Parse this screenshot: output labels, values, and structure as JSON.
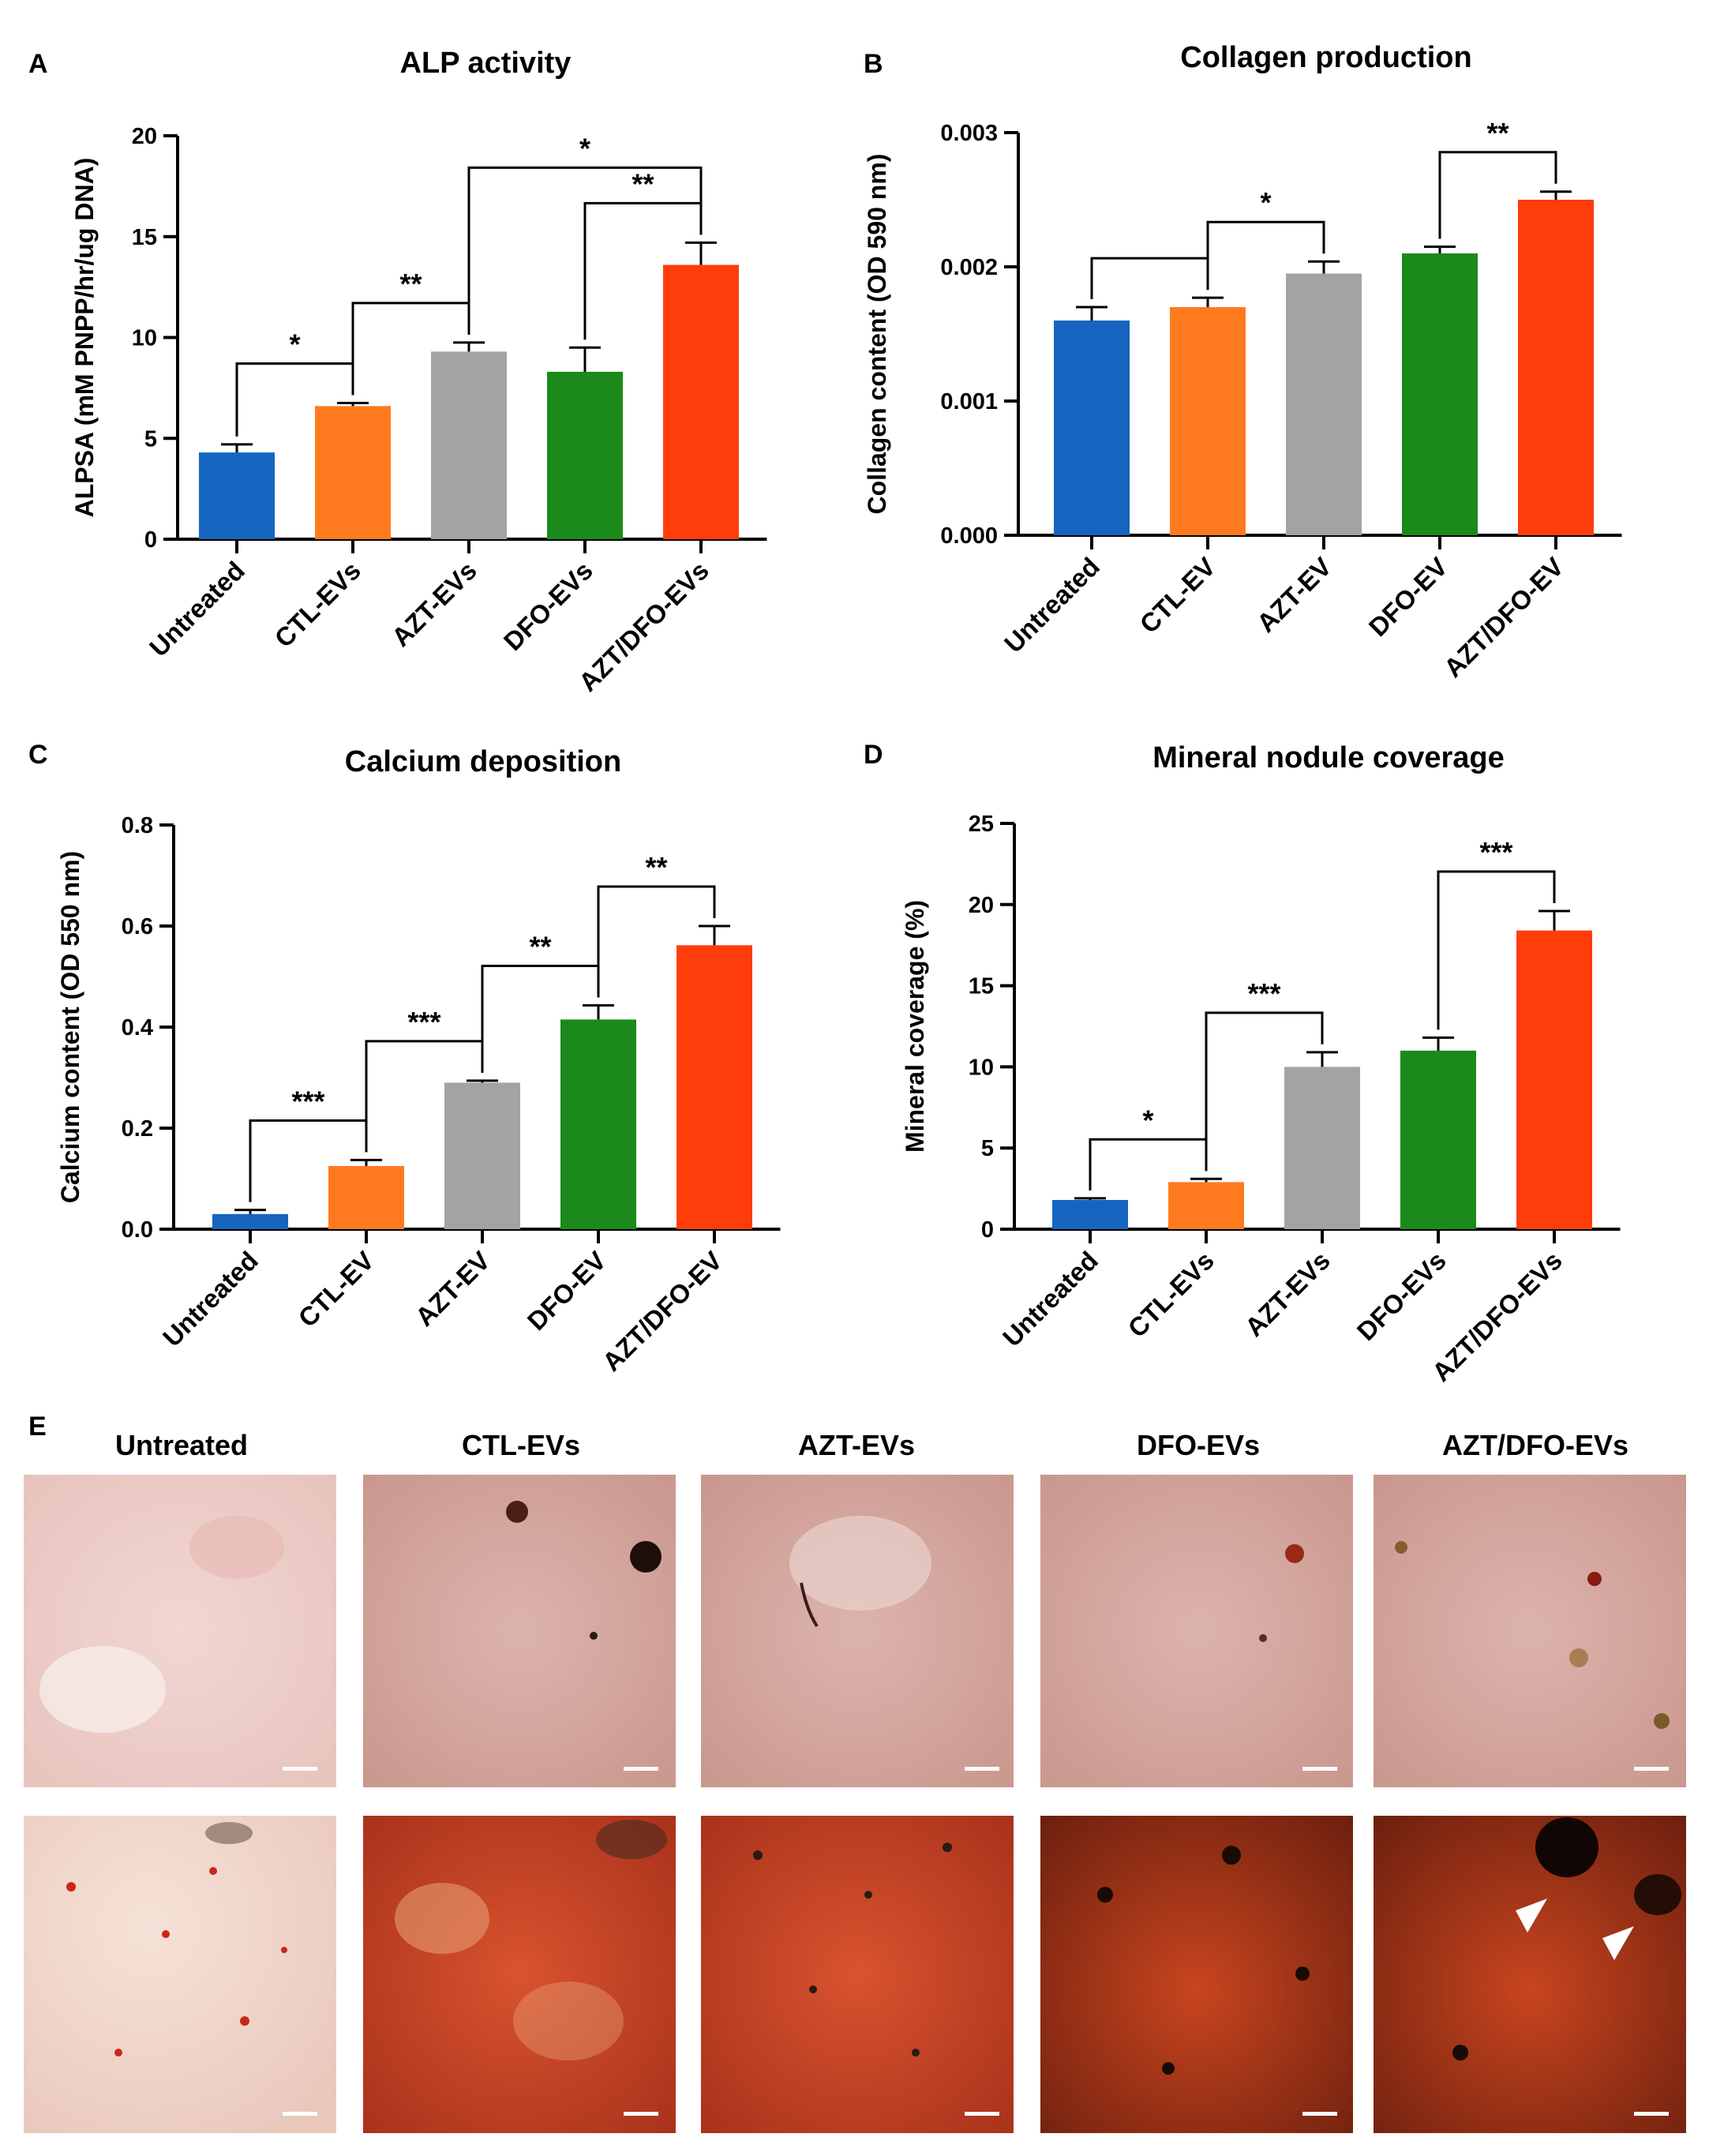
{
  "colors": {
    "untreated": "#1565C0",
    "ctl": "#FF7A1F",
    "azt": "#A3A3A3",
    "dfo": "#1A8A1A",
    "azt_dfo": "#FF3D0A"
  },
  "chart_data": [
    {
      "panel": "A",
      "type": "bar",
      "title": "ALP activity",
      "ylabel": "ALPSA (mM PNPP/hr/ug DNA)",
      "xlabel": "",
      "ylim": [
        0,
        20
      ],
      "yticks": [
        0,
        5,
        10,
        15,
        20
      ],
      "tick_labels": [
        "0",
        "5",
        "10",
        "15",
        "20"
      ],
      "categories": [
        "Untreated",
        "CTL-EVs",
        "AZT-EVs",
        "DFO-EVs",
        "AZT/DFO-EVs"
      ],
      "values": [
        4.3,
        6.6,
        9.3,
        8.3,
        13.6
      ],
      "errors": [
        0.4,
        0.15,
        0.45,
        1.2,
        1.1
      ],
      "significance": [
        {
          "from": 0,
          "to": 1,
          "label": "*"
        },
        {
          "from": 1,
          "to": 2,
          "label": "**"
        },
        {
          "from": 3,
          "to": 4,
          "label": "**"
        },
        {
          "from": 2,
          "to": 4,
          "label": "*"
        }
      ]
    },
    {
      "panel": "B",
      "type": "bar",
      "title": "Collagen production",
      "ylabel": "Collagen content (OD 590 nm)",
      "xlabel": "",
      "ylim": [
        0,
        0.003
      ],
      "yticks": [
        0,
        0.001,
        0.002,
        0.003
      ],
      "tick_labels": [
        "0.000",
        "0.001",
        "0.002",
        "0.003"
      ],
      "categories": [
        "Untreated",
        "CTL-EV",
        "AZT-EV",
        "DFO-EV",
        "AZT/DFO-EV"
      ],
      "values": [
        0.0016,
        0.0017,
        0.00195,
        0.0021,
        0.0025
      ],
      "errors": [
        0.0001,
        7e-05,
        9e-05,
        5e-05,
        6e-05
      ],
      "significance": [
        {
          "from": 0,
          "to": 1,
          "label": ""
        },
        {
          "from": 1,
          "to": 2,
          "label": "*"
        },
        {
          "from": 3,
          "to": 4,
          "label": "**"
        }
      ]
    },
    {
      "panel": "C",
      "type": "bar",
      "title": "Calcium deposition",
      "ylabel": "Calcium content (OD 550 nm)",
      "xlabel": "",
      "ylim": [
        0,
        0.8
      ],
      "yticks": [
        0,
        0.2,
        0.4,
        0.6,
        0.8
      ],
      "tick_labels": [
        "0.0",
        "0.2",
        "0.4",
        "0.6",
        "0.8"
      ],
      "categories": [
        "Untreated",
        "CTL-EV",
        "AZT-EV",
        "DFO-EV",
        "AZT/DFO-EV"
      ],
      "values": [
        0.03,
        0.125,
        0.29,
        0.415,
        0.562
      ],
      "errors": [
        0.008,
        0.012,
        0.004,
        0.028,
        0.038
      ],
      "significance": [
        {
          "from": 0,
          "to": 1,
          "label": "***"
        },
        {
          "from": 1,
          "to": 2,
          "label": "***"
        },
        {
          "from": 2,
          "to": 3,
          "label": "**"
        },
        {
          "from": 3,
          "to": 4,
          "label": "**"
        }
      ]
    },
    {
      "panel": "D",
      "type": "bar",
      "title": "Mineral nodule coverage",
      "ylabel": "Mineral coverage (%)",
      "xlabel": "",
      "ylim": [
        0,
        25
      ],
      "yticks": [
        0,
        5,
        10,
        15,
        20,
        25
      ],
      "tick_labels": [
        "0",
        "5",
        "10",
        "15",
        "20",
        "25"
      ],
      "categories": [
        "Untreated",
        "CTL-EVs",
        "AZT-EVs",
        "DFO-EVs",
        "AZT/DFO-EVs"
      ],
      "values": [
        1.8,
        2.9,
        10.0,
        11.0,
        18.4
      ],
      "errors": [
        0.1,
        0.2,
        0.9,
        0.8,
        1.2
      ],
      "significance": [
        {
          "from": 0,
          "to": 1,
          "label": "*"
        },
        {
          "from": 1,
          "to": 2,
          "label": "***"
        },
        {
          "from": 3,
          "to": 4,
          "label": "***"
        }
      ]
    }
  ],
  "panel_e": {
    "letter": "E",
    "labels": [
      "Untreated",
      "CTL-EVs",
      "AZT-EVs",
      "DFO-EVs",
      "AZT/DFO-EVs"
    ]
  }
}
